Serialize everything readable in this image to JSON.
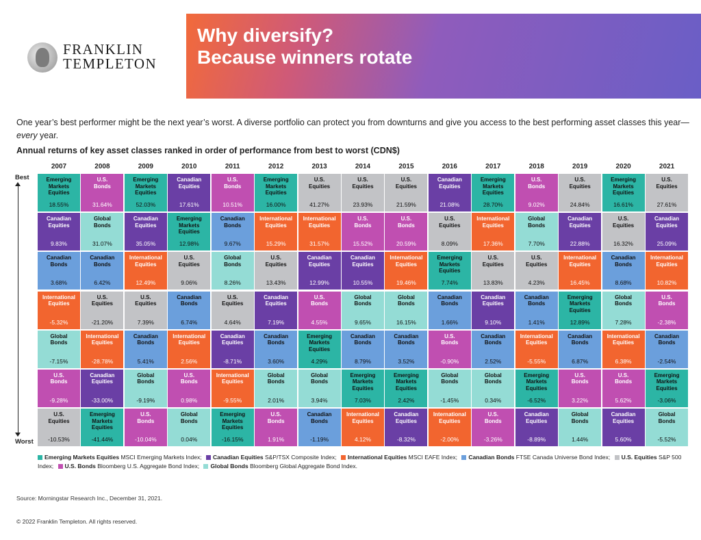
{
  "header": {
    "brand_line1": "FRANKLIN",
    "brand_line2": "TEMPLETON",
    "banner_line1": "Why diversify?",
    "banner_line2": "Because winners rotate"
  },
  "intro": {
    "text": "One year’s best performer might be the next year’s worst. A diverse portfolio can protect you from downturns and give you access to the best performing asset classes this year—",
    "emphasis": "every",
    "tail": " year."
  },
  "chart_data": {
    "type": "table",
    "title": "Annual returns of key asset classes ranked in order of performance from best to worst (CDN$)",
    "axis_top_label": "Best",
    "axis_bottom_label": "Worst",
    "years": [
      "2007",
      "2008",
      "2009",
      "2010",
      "2011",
      "2012",
      "2013",
      "2014",
      "2015",
      "2016",
      "2017",
      "2018",
      "2019",
      "2020",
      "2021"
    ],
    "asset_classes": [
      {
        "key": "EM",
        "name": "Emerging Markets Equities",
        "index": "MSCI Emerging Markets Index;",
        "color": "#2cb5a5"
      },
      {
        "key": "CE",
        "name": "Canadian Equities",
        "index": "S&P/TSX Composite Index;",
        "color": "#6a3fa5"
      },
      {
        "key": "IE",
        "name": "International Equities",
        "index": "MSCI EAFE Index;",
        "color": "#f2652f"
      },
      {
        "key": "CB",
        "name": "Canadian Bonds",
        "index": "FTSE Canada Universe Bond Index;",
        "color": "#6b9fdc"
      },
      {
        "key": "USE",
        "name": "U.S. Equities",
        "index": "S&P 500 Index;",
        "color": "#c2c3c6"
      },
      {
        "key": "USB",
        "name": "U.S. Bonds",
        "index": "Bloomberg U.S. Aggregate Bond Index;",
        "color": "#c04fb1"
      },
      {
        "key": "GB",
        "name": "Global Bonds",
        "index": "Bloomberg Global Aggregate Bond Index.",
        "color": "#94dcd5"
      }
    ],
    "columns": [
      [
        [
          "EM",
          "18.55%"
        ],
        [
          "CE",
          "9.83%"
        ],
        [
          "CB",
          "3.68%"
        ],
        [
          "IE",
          "-5.32%"
        ],
        [
          "GB",
          "-7.15%"
        ],
        [
          "USB",
          "-9.28%"
        ],
        [
          "USE",
          "-10.53%"
        ]
      ],
      [
        [
          "USB",
          "31.64%"
        ],
        [
          "GB",
          "31.07%"
        ],
        [
          "CB",
          "6.42%"
        ],
        [
          "USE",
          "-21.20%"
        ],
        [
          "IE",
          "-28.78%"
        ],
        [
          "CE",
          "-33.00%"
        ],
        [
          "EM",
          "-41.44%"
        ]
      ],
      [
        [
          "EM",
          "52.03%"
        ],
        [
          "CE",
          "35.05%"
        ],
        [
          "IE",
          "12.49%"
        ],
        [
          "USE",
          "7.39%"
        ],
        [
          "CB",
          "5.41%"
        ],
        [
          "GB",
          "-9.19%"
        ],
        [
          "USB",
          "-10.04%"
        ]
      ],
      [
        [
          "CE",
          "17.61%"
        ],
        [
          "EM",
          "12.98%"
        ],
        [
          "USE",
          "9.06%"
        ],
        [
          "CB",
          "6.74%"
        ],
        [
          "IE",
          "2.56%"
        ],
        [
          "USB",
          "0.98%"
        ],
        [
          "GB",
          "0.04%"
        ]
      ],
      [
        [
          "USB",
          "10.51%"
        ],
        [
          "CB",
          "9.67%"
        ],
        [
          "GB",
          "8.26%"
        ],
        [
          "USE",
          "4.64%"
        ],
        [
          "CE",
          "-8.71%"
        ],
        [
          "IE",
          "-9.55%"
        ],
        [
          "EM",
          "-16.15%"
        ]
      ],
      [
        [
          "EM",
          "16.00%"
        ],
        [
          "IE",
          "15.29%"
        ],
        [
          "USE",
          "13.43%"
        ],
        [
          "CE",
          "7.19%"
        ],
        [
          "CB",
          "3.60%"
        ],
        [
          "GB",
          "2.01%"
        ],
        [
          "USB",
          "1.91%"
        ]
      ],
      [
        [
          "USE",
          "41.27%"
        ],
        [
          "IE",
          "31.57%"
        ],
        [
          "CE",
          "12.99%"
        ],
        [
          "USB",
          "4.55%"
        ],
        [
          "EM",
          "4.29%"
        ],
        [
          "GB",
          "3.94%"
        ],
        [
          "CB",
          "-1.19%"
        ]
      ],
      [
        [
          "USE",
          "23.93%"
        ],
        [
          "USB",
          "15.52%"
        ],
        [
          "CE",
          "10.55%"
        ],
        [
          "GB",
          "9.65%"
        ],
        [
          "CB",
          "8.79%"
        ],
        [
          "EM",
          "7.03%"
        ],
        [
          "IE",
          "4.12%"
        ]
      ],
      [
        [
          "USE",
          "21.59%"
        ],
        [
          "USB",
          "20.59%"
        ],
        [
          "IE",
          "19.46%"
        ],
        [
          "GB",
          "16.15%"
        ],
        [
          "CB",
          "3.52%"
        ],
        [
          "EM",
          "2.42%"
        ],
        [
          "CE",
          "-8.32%"
        ]
      ],
      [
        [
          "CE",
          "21.08%"
        ],
        [
          "USE",
          "8.09%"
        ],
        [
          "EM",
          "7.74%"
        ],
        [
          "CB",
          "1.66%"
        ],
        [
          "USB",
          "-0.90%"
        ],
        [
          "GB",
          "-1.45%"
        ],
        [
          "IE",
          "-2.00%"
        ]
      ],
      [
        [
          "EM",
          "28.70%"
        ],
        [
          "IE",
          "17.36%"
        ],
        [
          "USE",
          "13.83%"
        ],
        [
          "CE",
          "9.10%"
        ],
        [
          "CB",
          "2.52%"
        ],
        [
          "GB",
          "0.34%"
        ],
        [
          "USB",
          "-3.26%"
        ]
      ],
      [
        [
          "USB",
          "9.02%"
        ],
        [
          "GB",
          "7.70%"
        ],
        [
          "USE",
          "4.23%"
        ],
        [
          "CB",
          "1.41%"
        ],
        [
          "IE",
          "-5.55%"
        ],
        [
          "EM",
          "-6.52%"
        ],
        [
          "CE",
          "-8.89%"
        ]
      ],
      [
        [
          "USE",
          "24.84%"
        ],
        [
          "CE",
          "22.88%"
        ],
        [
          "IE",
          "16.45%"
        ],
        [
          "EM",
          "12.89%"
        ],
        [
          "CB",
          "6.87%"
        ],
        [
          "USB",
          "3.22%"
        ],
        [
          "GB",
          "1.44%"
        ]
      ],
      [
        [
          "EM",
          "16.61%"
        ],
        [
          "USE",
          "16.32%"
        ],
        [
          "CB",
          "8.68%"
        ],
        [
          "GB",
          "7.28%"
        ],
        [
          "IE",
          "6.38%"
        ],
        [
          "USB",
          "5.62%"
        ],
        [
          "CE",
          "5.60%"
        ]
      ],
      [
        [
          "USE",
          "27.61%"
        ],
        [
          "CE",
          "25.09%"
        ],
        [
          "IE",
          "10.82%"
        ],
        [
          "USB",
          "-2.38%"
        ],
        [
          "CB",
          "-2.54%"
        ],
        [
          "EM",
          "-3.06%"
        ],
        [
          "GB",
          "-5.52%"
        ]
      ]
    ]
  },
  "footer": {
    "source": "Source: Morningstar Research Inc., December 31, 2021.",
    "copyright": "© 2022 Franklin Templeton. All rights reserved."
  }
}
